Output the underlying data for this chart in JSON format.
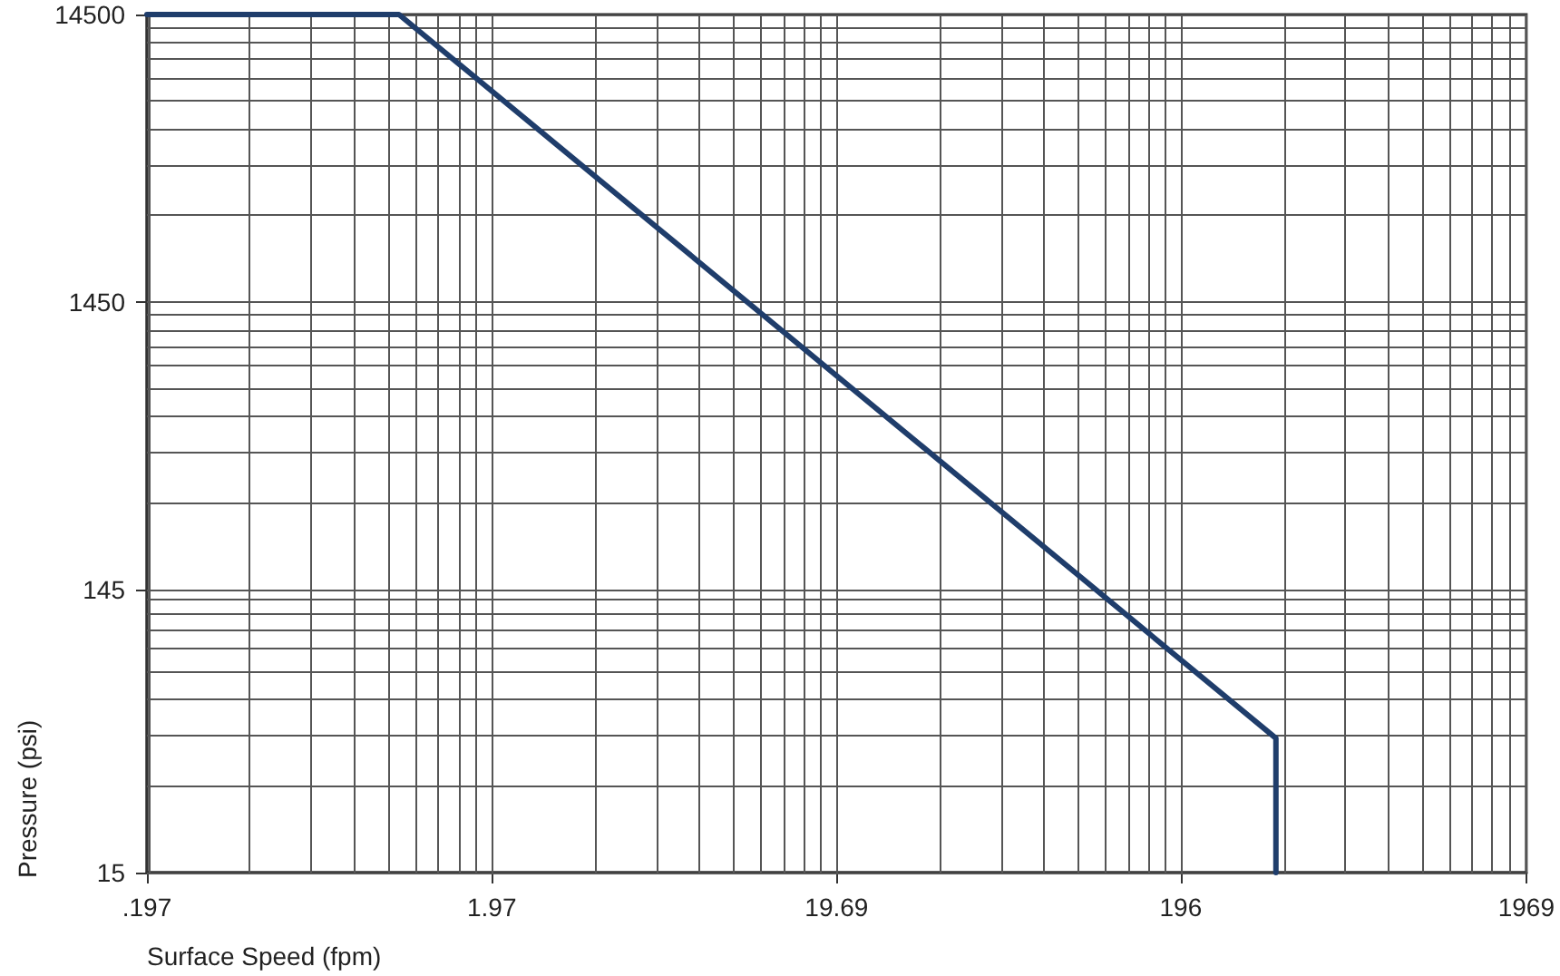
{
  "chart_data": {
    "type": "line",
    "xlabel": "Surface Speed (fpm)",
    "ylabel": "Pressure (psi)",
    "series": [
      {
        "color": "#1f3d6b",
        "x": [
          0.197,
          1.06,
          370,
          370
        ],
        "values": [
          14500,
          14500,
          44,
          15
        ]
      }
    ],
    "log": "xy",
    "xlim": [
      0.197,
      1969
    ],
    "ylim": [
      15,
      14500
    ],
    "xticks": [
      {
        "value": 0.197,
        "label": ".197"
      },
      1.97,
      19.69,
      196,
      1969
    ],
    "yticks": [
      15,
      145,
      1450,
      14500
    ],
    "grid": true,
    "marker": "none",
    "line_style": "solid"
  }
}
